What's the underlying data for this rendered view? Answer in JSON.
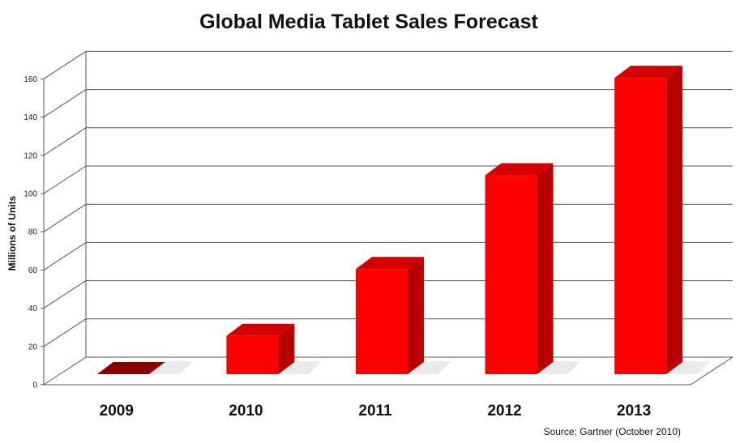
{
  "chart_data": {
    "type": "bar",
    "title": "Global Media Tablet Sales Forecast",
    "xlabel": "",
    "ylabel": "Millions of Units",
    "categories": [
      "2009",
      "2010",
      "2011",
      "2012",
      "2013"
    ],
    "values": [
      1,
      20,
      55,
      104,
      155
    ],
    "yticks": [
      0,
      20,
      40,
      60,
      80,
      100,
      120,
      140,
      160
    ],
    "ylim": [
      0,
      160
    ],
    "grid": true,
    "legend": "none",
    "source": "Source: Gartner (October 2010)",
    "colors": {
      "front": "#ff0000",
      "side": "#b80000",
      "top": "#d40000",
      "small_bar": "#8b0000"
    }
  }
}
